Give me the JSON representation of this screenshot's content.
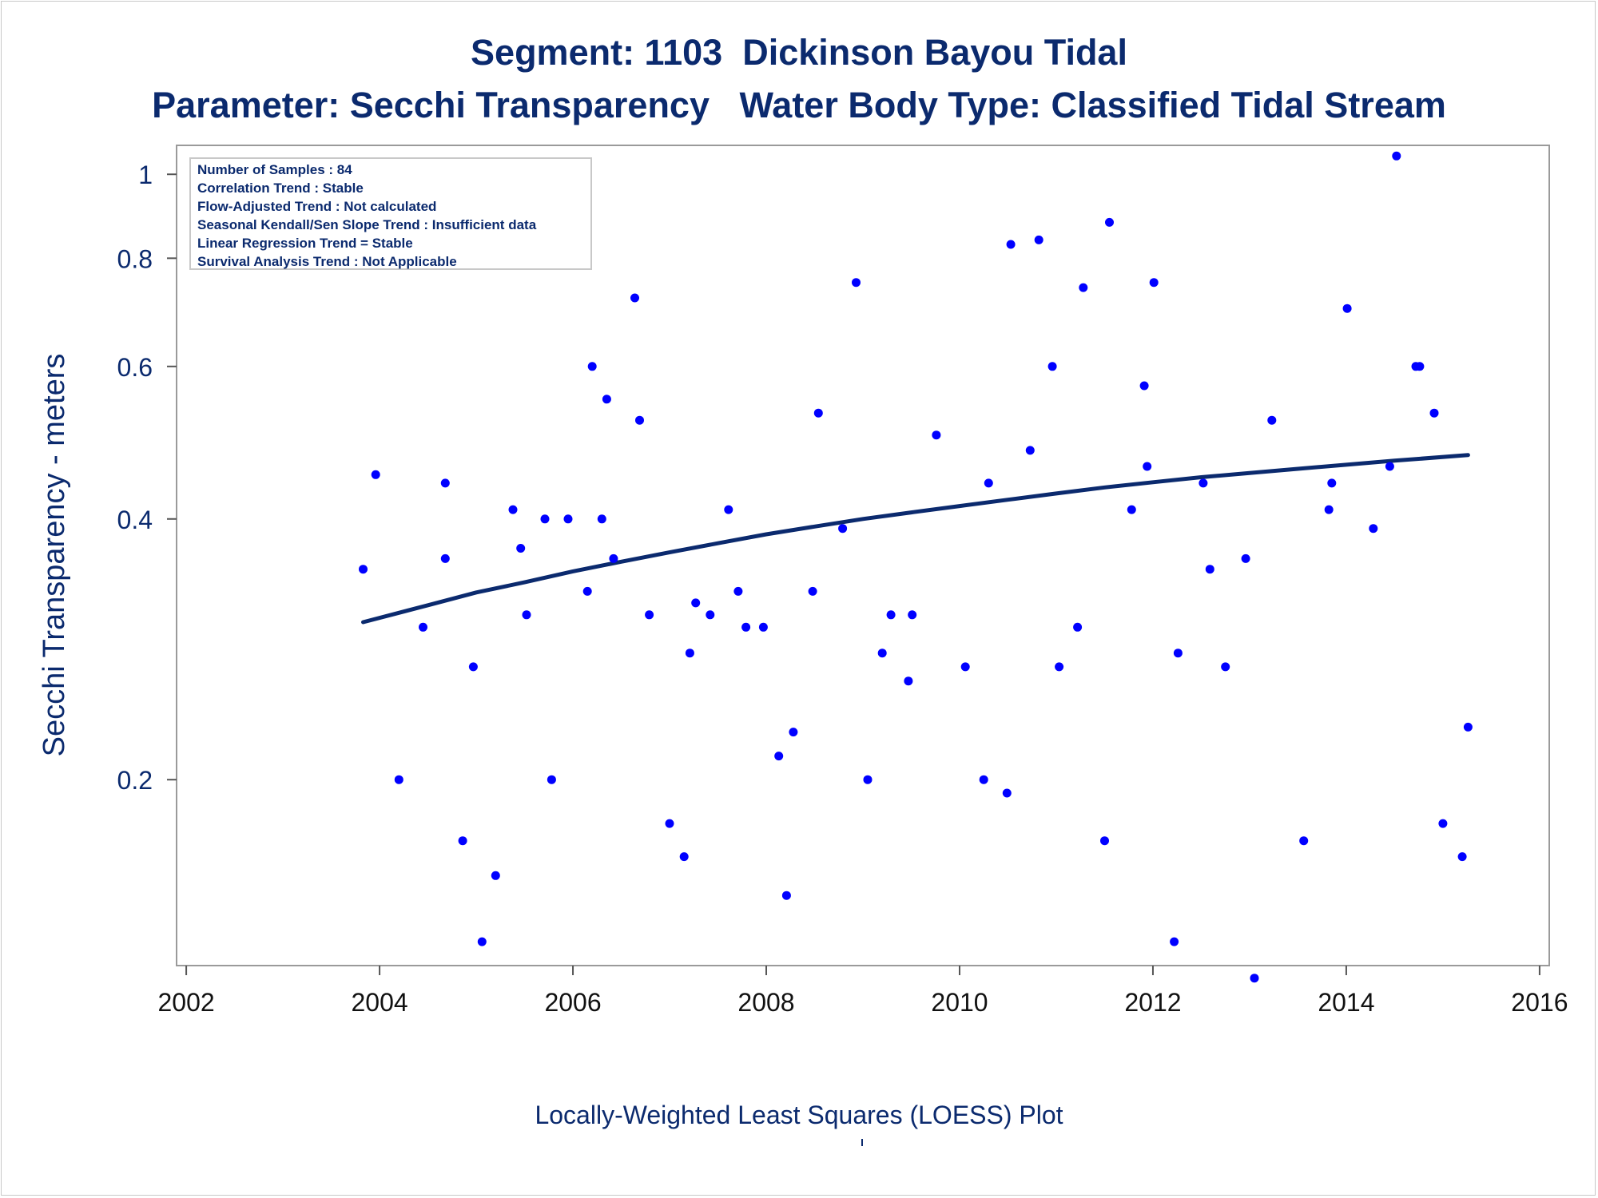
{
  "chart_data": {
    "type": "scatter",
    "title": "Segment: 1103  Dickinson Bayou Tidal",
    "subtitle": "Parameter: Secchi Transparency   Water Body Type: Classified Tidal Stream",
    "ylabel": "Secchi Transparency - meters",
    "xlabel": "",
    "footnote": "Locally-Weighted Least Squares (LOESS) Plot",
    "yscale": "log",
    "xlim": [
      2001.9,
      2016.1
    ],
    "ylim": [
      0.122,
      1.08
    ],
    "xticks": [
      "2002",
      "2004",
      "2006",
      "2008",
      "2010",
      "2012",
      "2014",
      "2016"
    ],
    "yticks": [
      "0.2",
      "0.4",
      "0.6",
      "0.8",
      "1"
    ],
    "grid": false,
    "point_color": "#0000ff",
    "line_color": "#0b2a6e",
    "stats_box": {
      "position": "top-left",
      "lines": [
        "Number of Samples : 84",
        "Correlation Trend : Stable",
        "Flow-Adjusted Trend : Not calculated",
        "Seasonal Kendall/Sen Slope Trend : Insufficient data",
        "Linear Regression Trend = Stable",
        "Survival Analysis Trend : Not Applicable"
      ]
    },
    "series": [
      {
        "type": "scatter",
        "points": [
          [
            2003.83,
            0.35
          ],
          [
            2003.96,
            0.45
          ],
          [
            2004.2,
            0.2
          ],
          [
            2004.45,
            0.3
          ],
          [
            2004.68,
            0.44
          ],
          [
            2004.68,
            0.36
          ],
          [
            2004.86,
            0.17
          ],
          [
            2004.97,
            0.27
          ],
          [
            2005.06,
            0.13
          ],
          [
            2005.2,
            0.155
          ],
          [
            2005.38,
            0.41
          ],
          [
            2005.46,
            0.37
          ],
          [
            2005.52,
            0.31
          ],
          [
            2005.71,
            0.4
          ],
          [
            2005.78,
            0.2
          ],
          [
            2005.95,
            0.4
          ],
          [
            2006.15,
            0.33
          ],
          [
            2006.2,
            0.6
          ],
          [
            2006.3,
            0.4
          ],
          [
            2006.35,
            0.55
          ],
          [
            2006.42,
            0.36
          ],
          [
            2006.64,
            0.72
          ],
          [
            2006.69,
            0.52
          ],
          [
            2006.79,
            0.31
          ],
          [
            2007.0,
            0.178
          ],
          [
            2007.15,
            0.163
          ],
          [
            2007.21,
            0.28
          ],
          [
            2007.27,
            0.32
          ],
          [
            2007.42,
            0.31
          ],
          [
            2007.61,
            0.41
          ],
          [
            2007.71,
            0.33
          ],
          [
            2007.79,
            0.3
          ],
          [
            2007.97,
            0.3
          ],
          [
            2008.13,
            0.213
          ],
          [
            2008.21,
            0.147
          ],
          [
            2008.28,
            0.227
          ],
          [
            2008.48,
            0.33
          ],
          [
            2008.54,
            0.53
          ],
          [
            2008.79,
            0.39
          ],
          [
            2008.93,
            0.75
          ],
          [
            2009.05,
            0.2
          ],
          [
            2009.2,
            0.28
          ],
          [
            2009.29,
            0.31
          ],
          [
            2009.47,
            0.26
          ],
          [
            2009.51,
            0.31
          ],
          [
            2009.76,
            0.5
          ],
          [
            2010.06,
            0.27
          ],
          [
            2010.25,
            0.2
          ],
          [
            2010.3,
            0.44
          ],
          [
            2010.49,
            0.193
          ],
          [
            2010.53,
            0.83
          ],
          [
            2010.73,
            0.48
          ],
          [
            2010.82,
            0.84
          ],
          [
            2010.96,
            0.6
          ],
          [
            2011.03,
            0.27
          ],
          [
            2011.22,
            0.3
          ],
          [
            2011.28,
            0.74
          ],
          [
            2011.5,
            0.17
          ],
          [
            2011.55,
            0.88
          ],
          [
            2011.78,
            0.41
          ],
          [
            2011.91,
            0.57
          ],
          [
            2011.94,
            0.46
          ],
          [
            2012.01,
            0.75
          ],
          [
            2012.22,
            0.13
          ],
          [
            2012.26,
            0.28
          ],
          [
            2012.52,
            0.44
          ],
          [
            2012.59,
            0.35
          ],
          [
            2012.75,
            0.27
          ],
          [
            2012.96,
            0.36
          ],
          [
            2013.05,
            0.118
          ],
          [
            2013.23,
            0.52
          ],
          [
            2013.56,
            0.17
          ],
          [
            2013.82,
            0.41
          ],
          [
            2013.85,
            0.44
          ],
          [
            2014.01,
            0.7
          ],
          [
            2014.28,
            0.39
          ],
          [
            2014.45,
            0.46
          ],
          [
            2014.52,
            1.05
          ],
          [
            2014.72,
            0.6
          ],
          [
            2014.76,
            0.6
          ],
          [
            2014.91,
            0.53
          ],
          [
            2015.0,
            0.178
          ],
          [
            2015.2,
            0.163
          ],
          [
            2015.26,
            0.23
          ]
        ]
      },
      {
        "type": "line",
        "points": [
          [
            2003.83,
            0.304
          ],
          [
            2004.5,
            0.318
          ],
          [
            2005.0,
            0.329
          ],
          [
            2005.5,
            0.338
          ],
          [
            2006.0,
            0.348
          ],
          [
            2006.5,
            0.357
          ],
          [
            2007.0,
            0.366
          ],
          [
            2007.5,
            0.375
          ],
          [
            2008.0,
            0.384
          ],
          [
            2008.5,
            0.392
          ],
          [
            2009.0,
            0.4
          ],
          [
            2009.5,
            0.407
          ],
          [
            2010.0,
            0.414
          ],
          [
            2010.5,
            0.421
          ],
          [
            2011.0,
            0.428
          ],
          [
            2011.5,
            0.435
          ],
          [
            2012.0,
            0.441
          ],
          [
            2012.5,
            0.447
          ],
          [
            2013.0,
            0.452
          ],
          [
            2013.5,
            0.457
          ],
          [
            2014.0,
            0.462
          ],
          [
            2014.5,
            0.467
          ],
          [
            2015.26,
            0.474
          ]
        ]
      }
    ]
  }
}
